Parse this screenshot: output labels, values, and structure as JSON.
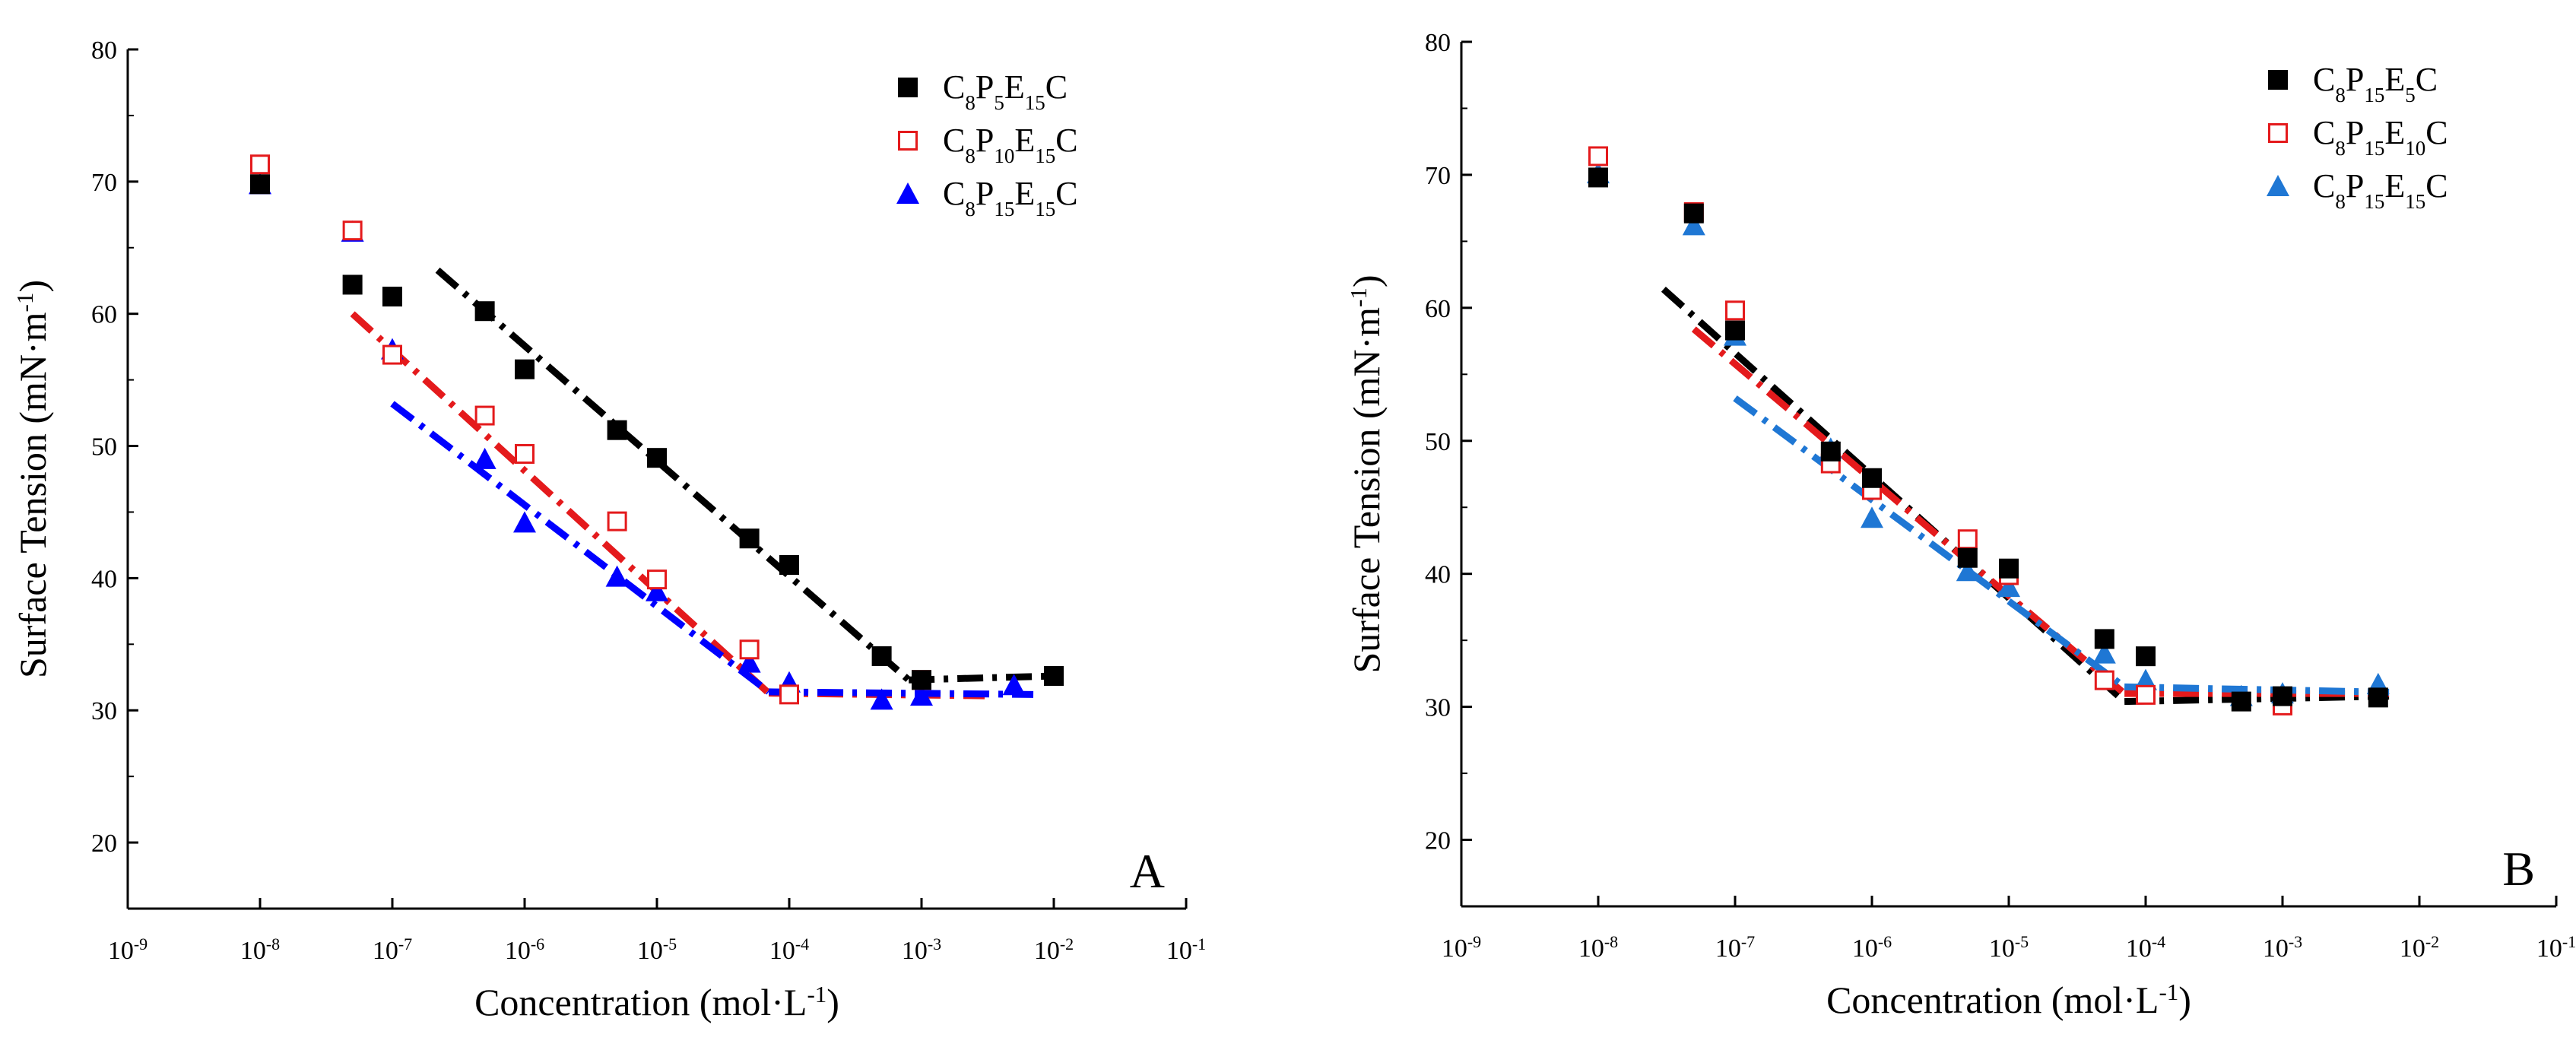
{
  "chart_data": [
    {
      "type": "scatter",
      "panel_label": "A",
      "xlabel": "Concentration (mol·L⁻¹)",
      "ylabel": "Surface Tension (mN·m⁻¹)",
      "x_scale": "log",
      "xlim_exponents": [
        -9,
        -1
      ],
      "ylim": [
        15,
        80
      ],
      "xtick_exponents": [
        -9,
        -8,
        -7,
        -6,
        -5,
        -4,
        -3,
        -2,
        -1
      ],
      "xtick_labels": [
        "10⁻⁹",
        "10⁻⁸",
        "10⁻⁷",
        "10⁻⁶",
        "10⁻⁵",
        "10⁻⁴",
        "10⁻³",
        "10⁻²",
        "10⁻¹"
      ],
      "yticks": [
        20,
        30,
        40,
        50,
        60,
        70,
        80
      ],
      "ytick_labels": [
        "20",
        "30",
        "40",
        "50",
        "60",
        "70",
        "80"
      ],
      "legend_position": "top-right",
      "series": [
        {
          "name": "C8P5E15C",
          "legend_label": "C₈P₅E₁₅C",
          "marker": "filled-square",
          "color": "#000000",
          "fill": "#000000",
          "points": [
            {
              "x": 1e-08,
              "y": 69.8
            },
            {
              "x": 5e-08,
              "y": 62.2
            },
            {
              "x": 1e-07,
              "y": 61.3
            },
            {
              "x": 5e-07,
              "y": 60.2
            },
            {
              "x": 1e-06,
              "y": 55.8
            },
            {
              "x": 5e-06,
              "y": 51.2
            },
            {
              "x": 1e-05,
              "y": 49.1
            },
            {
              "x": 5e-05,
              "y": 43.0
            },
            {
              "x": 0.0001,
              "y": 41.0
            },
            {
              "x": 0.0005,
              "y": 34.1
            },
            {
              "x": 0.001,
              "y": 32.3
            },
            {
              "x": 0.01,
              "y": 32.6
            }
          ],
          "fit_lines": [
            {
              "x": [
                2.2e-07,
                0.0008
              ],
              "y": [
                63.3,
                32.3
              ]
            },
            {
              "x": 0.0008,
              "x_end": 0.01,
              "y": [
                32.3,
                32.6
              ]
            }
          ]
        },
        {
          "name": "C8P10E15C",
          "legend_label": "C₈P₁₀E₁₅C",
          "marker": "open-square",
          "color": "#e41a1c",
          "fill": "#ffffff",
          "points": [
            {
              "x": 1e-08,
              "y": 71.3
            },
            {
              "x": 5e-08,
              "y": 66.3
            },
            {
              "x": 1e-07,
              "y": 56.9
            },
            {
              "x": 5e-07,
              "y": 52.3
            },
            {
              "x": 1e-06,
              "y": 49.4
            },
            {
              "x": 5e-06,
              "y": 44.3
            },
            {
              "x": 1e-05,
              "y": 39.9
            },
            {
              "x": 5e-05,
              "y": 34.6
            },
            {
              "x": 0.0001,
              "y": 31.2
            },
            {
              "x": 0.001,
              "y": 32.3
            }
          ],
          "fit_lines": [
            {
              "x": [
                5e-08,
                7e-05
              ],
              "y": [
                60.0,
                31.3
              ]
            },
            {
              "x": [
                7e-05,
                0.003
              ],
              "y": [
                31.3,
                31.1
              ]
            }
          ]
        },
        {
          "name": "C8P15E15C",
          "legend_label": "C₈P₁₅E₁₅C",
          "marker": "filled-triangle",
          "color": "#0000ff",
          "fill": "#0000ff",
          "points": [
            {
              "x": 1e-08,
              "y": 69.8
            },
            {
              "x": 5e-08,
              "y": 66.2
            },
            {
              "x": 1e-07,
              "y": 57.3
            },
            {
              "x": 5e-07,
              "y": 49.0
            },
            {
              "x": 1e-06,
              "y": 44.2
            },
            {
              "x": 5e-06,
              "y": 40.1
            },
            {
              "x": 1e-05,
              "y": 39.0
            },
            {
              "x": 5e-05,
              "y": 33.6
            },
            {
              "x": 0.0001,
              "y": 32.1
            },
            {
              "x": 0.0005,
              "y": 30.8
            },
            {
              "x": 0.001,
              "y": 31.1
            },
            {
              "x": 0.005,
              "y": 31.9
            }
          ],
          "fit_lines": [
            {
              "x": [
                1e-07,
                7e-05
              ],
              "y": [
                53.2,
                31.4
              ]
            },
            {
              "x": [
                7e-05,
                0.007
              ],
              "y": [
                31.4,
                31.2
              ]
            }
          ]
        }
      ]
    },
    {
      "type": "scatter",
      "panel_label": "B",
      "xlabel": "Concentration (mol·L⁻¹)",
      "ylabel": "Surface Tension (mN·m⁻¹)",
      "x_scale": "log",
      "xlim_exponents": [
        -9,
        -1
      ],
      "ylim": [
        15,
        80
      ],
      "xtick_exponents": [
        -9,
        -8,
        -7,
        -6,
        -5,
        -4,
        -3,
        -2,
        -1
      ],
      "xtick_labels": [
        "10⁻⁹",
        "10⁻⁸",
        "10⁻⁷",
        "10⁻⁶",
        "10⁻⁵",
        "10⁻⁴",
        "10⁻³",
        "10⁻²",
        "10⁻¹"
      ],
      "yticks": [
        20,
        30,
        40,
        50,
        60,
        70,
        80
      ],
      "ytick_labels": [
        "20",
        "30",
        "40",
        "50",
        "60",
        "70",
        "80"
      ],
      "legend_position": "top-right",
      "series": [
        {
          "name": "C8P15E5C",
          "legend_label": "C₈P₁₅E₅C",
          "marker": "filled-square",
          "color": "#000000",
          "fill": "#000000",
          "points": [
            {
              "x": 1e-08,
              "y": 69.8
            },
            {
              "x": 5e-08,
              "y": 67.1
            },
            {
              "x": 1e-07,
              "y": 58.3
            },
            {
              "x": 5e-07,
              "y": 49.2
            },
            {
              "x": 1e-06,
              "y": 47.2
            },
            {
              "x": 5e-06,
              "y": 41.2
            },
            {
              "x": 1e-05,
              "y": 40.4
            },
            {
              "x": 5e-05,
              "y": 35.1
            },
            {
              "x": 0.0001,
              "y": 33.8
            },
            {
              "x": 0.0005,
              "y": 30.4
            },
            {
              "x": 0.001,
              "y": 30.8
            },
            {
              "x": 0.005,
              "y": 30.7
            }
          ],
          "fit_lines": [
            {
              "x": [
                3e-08,
                7e-05
              ],
              "y": [
                61.4,
                30.4
              ]
            },
            {
              "x": [
                7e-05,
                0.006
              ],
              "y": [
                30.4,
                30.8
              ]
            }
          ]
        },
        {
          "name": "C8P15E10C",
          "legend_label": "C₈P₁₅E₁₀C",
          "marker": "open-square",
          "color": "#e41a1c",
          "fill": "#ffffff",
          "points": [
            {
              "x": 1e-08,
              "y": 71.4
            },
            {
              "x": 5e-08,
              "y": 67.2
            },
            {
              "x": 1e-07,
              "y": 59.8
            },
            {
              "x": 5e-07,
              "y": 48.3
            },
            {
              "x": 1e-06,
              "y": 46.3
            },
            {
              "x": 5e-06,
              "y": 42.6
            },
            {
              "x": 1e-05,
              "y": 39.9
            },
            {
              "x": 5e-05,
              "y": 32.0
            },
            {
              "x": 0.0001,
              "y": 30.9
            },
            {
              "x": 0.001,
              "y": 30.1
            }
          ],
          "fit_lines": [
            {
              "x": [
                5e-08,
                7e-05
              ],
              "y": [
                58.4,
                31.0
              ]
            },
            {
              "x": [
                7e-05,
                0.006
              ],
              "y": [
                31.0,
                31.0
              ]
            }
          ]
        },
        {
          "name": "C8P15E15C",
          "legend_label": "C₈P₁₅E₁₅C",
          "marker": "filled-triangle",
          "color": "#1f77d4",
          "fill": "#1f77d4",
          "points": [
            {
              "x": 1e-08,
              "y": 70.1
            },
            {
              "x": 5e-08,
              "y": 66.2
            },
            {
              "x": 1e-07,
              "y": 57.9
            },
            {
              "x": 5e-07,
              "y": 49.4
            },
            {
              "x": 1e-06,
              "y": 44.2
            },
            {
              "x": 5e-06,
              "y": 40.2
            },
            {
              "x": 1e-05,
              "y": 39.0
            },
            {
              "x": 5e-05,
              "y": 34.0
            },
            {
              "x": 0.0001,
              "y": 32.0
            },
            {
              "x": 0.0005,
              "y": 30.8
            },
            {
              "x": 0.001,
              "y": 31.0
            },
            {
              "x": 0.005,
              "y": 31.7
            }
          ],
          "fit_lines": [
            {
              "x": [
                1e-07,
                7e-05
              ],
              "y": [
                53.2,
                31.5
              ]
            },
            {
              "x": [
                7e-05,
                0.006
              ],
              "y": [
                31.5,
                31.1
              ]
            }
          ]
        }
      ]
    }
  ]
}
